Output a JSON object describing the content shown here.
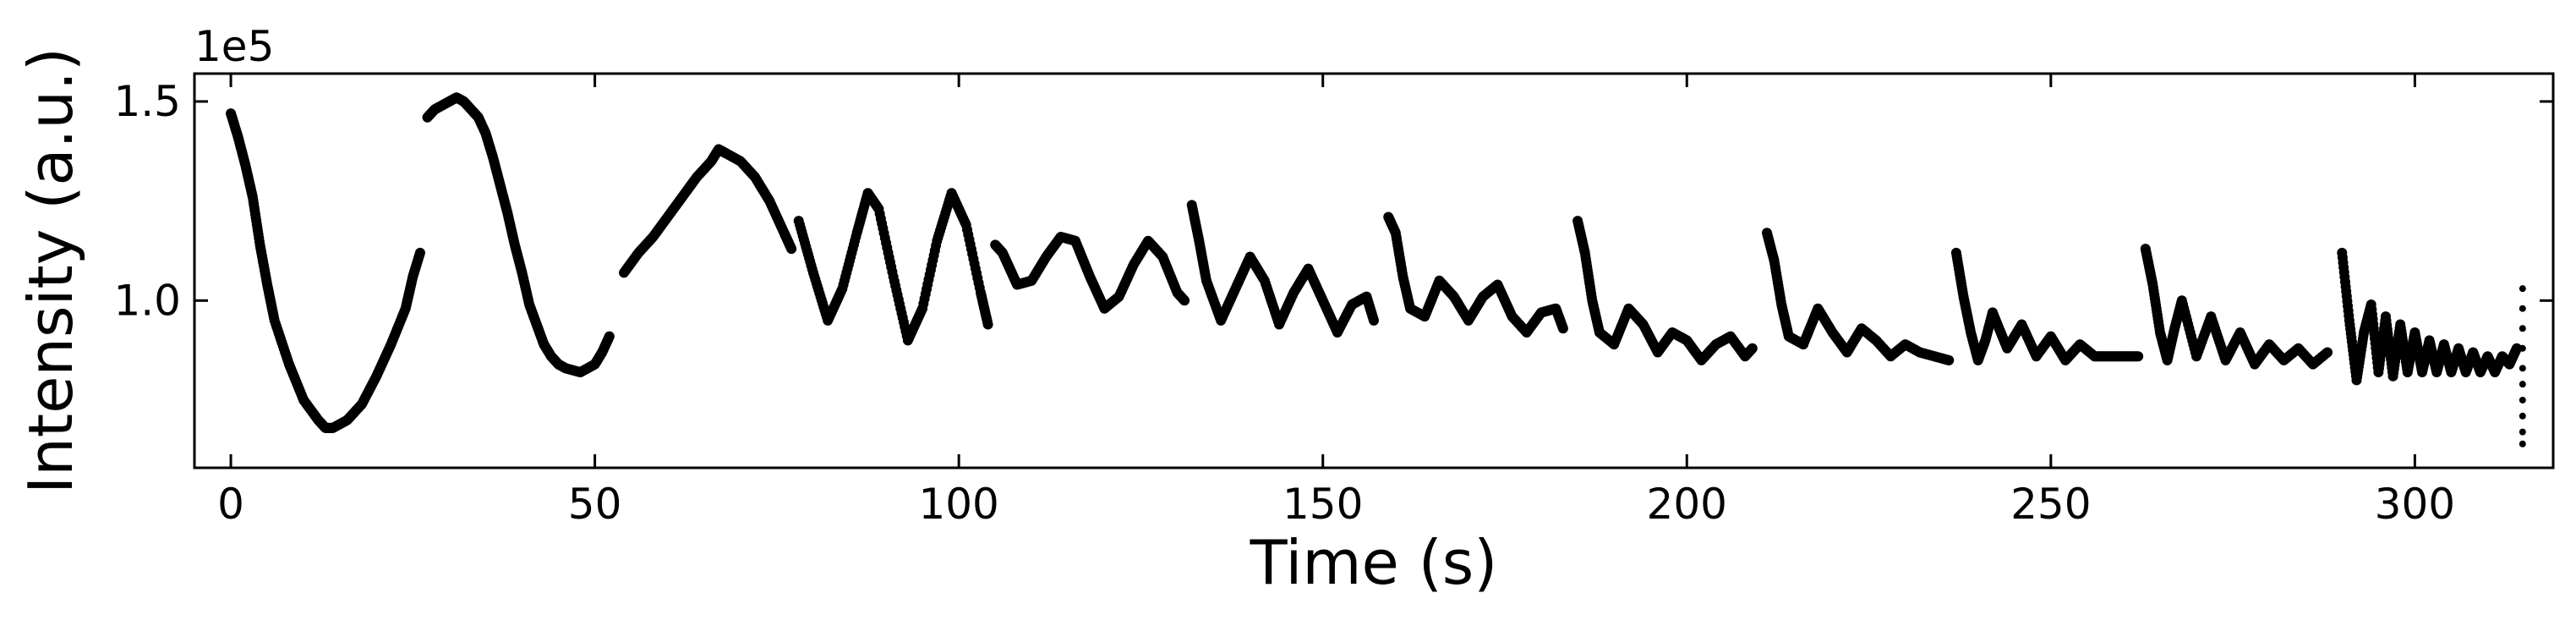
{
  "chart_data": {
    "type": "scatter",
    "title": "",
    "xlabel": "Time (s)",
    "ylabel": "Intensity (a.u.)",
    "y_multiplier_label": "1e5",
    "y_multiplier": 100000,
    "xlim": [
      -5,
      319
    ],
    "ylim": [
      58000,
      157000
    ],
    "xticks": [
      0,
      50,
      100,
      150,
      200,
      250,
      300
    ],
    "yticks": [
      100000,
      150000
    ],
    "ytick_labels": [
      "1.0",
      "1.5"
    ],
    "grid": false,
    "legend": "none",
    "marker_color": "#000000",
    "segments": [
      {
        "x": [
          0,
          1,
          2,
          3,
          4,
          5,
          6,
          8,
          10,
          12,
          13,
          14,
          16,
          18,
          20,
          22,
          24,
          25,
          26
        ],
        "y": [
          147000,
          141000,
          134000,
          126000,
          114000,
          104000,
          95000,
          84000,
          75000,
          70000,
          68000,
          68000,
          70000,
          74000,
          81000,
          89000,
          98000,
          106000,
          112000
        ]
      },
      {
        "x": [
          27,
          28,
          29,
          30,
          31,
          32,
          33,
          34,
          35,
          36,
          37,
          38,
          39,
          40,
          41,
          42,
          43,
          44,
          45,
          46,
          48,
          50,
          51,
          52
        ],
        "y": [
          146000,
          148000,
          149000,
          150000,
          151000,
          150000,
          148000,
          146000,
          142000,
          136000,
          129000,
          122000,
          114000,
          107000,
          99000,
          94000,
          89000,
          86000,
          84000,
          83000,
          82000,
          84000,
          87000,
          91000
        ]
      },
      {
        "x": [
          54,
          56,
          58,
          60,
          62,
          64,
          66,
          67,
          68,
          70,
          72,
          74,
          76,
          77
        ],
        "y": [
          107000,
          112000,
          116000,
          121000,
          126000,
          131000,
          135000,
          138000,
          137000,
          135000,
          131000,
          125000,
          117000,
          113000
        ]
      },
      {
        "x": [
          78,
          80,
          82,
          84,
          86,
          87.5,
          89,
          91,
          93,
          95,
          97,
          99,
          101,
          103,
          104
        ],
        "y": [
          120000,
          107000,
          95000,
          103000,
          117000,
          127000,
          123000,
          106000,
          90000,
          98000,
          115000,
          127000,
          119000,
          102000,
          94000
        ]
      },
      {
        "x": [
          105,
          106,
          107,
          108,
          110,
          112,
          114,
          116,
          118,
          120,
          122,
          124,
          126,
          128,
          130,
          131
        ],
        "y": [
          114000,
          112000,
          108000,
          104000,
          105000,
          111000,
          116000,
          115000,
          106000,
          98000,
          101000,
          109000,
          115000,
          111000,
          102000,
          100000
        ]
      },
      {
        "x": [
          132,
          133,
          134,
          136,
          138,
          140,
          142,
          144,
          146,
          148,
          150,
          152,
          154,
          156,
          157
        ],
        "y": [
          124000,
          115000,
          105000,
          95000,
          103000,
          111000,
          105000,
          94000,
          102000,
          108000,
          100000,
          92000,
          99000,
          101000,
          95000
        ]
      },
      {
        "x": [
          159,
          160,
          161,
          162,
          164,
          166,
          168,
          170,
          172,
          174,
          176,
          178,
          180,
          182,
          183
        ],
        "y": [
          121000,
          117000,
          106000,
          98000,
          96000,
          105000,
          101000,
          95000,
          101000,
          104000,
          96000,
          92000,
          97000,
          98000,
          93000
        ]
      },
      {
        "x": [
          185,
          186,
          187,
          188,
          190,
          192,
          194,
          196,
          198,
          200,
          202,
          204,
          206,
          208,
          209
        ],
        "y": [
          120000,
          112000,
          100000,
          92000,
          89000,
          98000,
          94000,
          87000,
          92000,
          90000,
          85000,
          89000,
          91000,
          86000,
          88000
        ]
      },
      {
        "x": [
          211,
          212,
          213,
          214,
          216,
          218,
          220,
          222,
          224,
          226,
          228,
          230,
          232,
          234,
          236
        ],
        "y": [
          117000,
          110000,
          99000,
          91000,
          89000,
          98000,
          92000,
          87000,
          93000,
          90000,
          86000,
          89000,
          87000,
          86000,
          85000
        ]
      },
      {
        "x": [
          237,
          238,
          239,
          240,
          241,
          242,
          244,
          246,
          248,
          250,
          252,
          254,
          256,
          258,
          260,
          262
        ],
        "y": [
          112000,
          101000,
          92000,
          85000,
          90000,
          97000,
          88000,
          94000,
          86000,
          91000,
          85000,
          89000,
          86000,
          86000,
          86000,
          86000
        ]
      },
      {
        "x": [
          263,
          264,
          265,
          266,
          267,
          268,
          270,
          272,
          274,
          276,
          278,
          280,
          282,
          284,
          286,
          288
        ],
        "y": [
          113000,
          104000,
          92000,
          85000,
          93000,
          100000,
          86000,
          96000,
          85000,
          92000,
          84000,
          89000,
          85000,
          88000,
          84000,
          87000
        ]
      },
      {
        "x": [
          290,
          291,
          292,
          293,
          294,
          295,
          296,
          297,
          298,
          299,
          300,
          301,
          302,
          303,
          304,
          305,
          306,
          307,
          308,
          309,
          310,
          311,
          312,
          313,
          314
        ],
        "y": [
          112000,
          95000,
          80000,
          92000,
          99000,
          82000,
          96000,
          81000,
          94000,
          82000,
          92000,
          82000,
          90000,
          82000,
          89000,
          82000,
          88000,
          82000,
          87000,
          82000,
          86000,
          82000,
          86000,
          84000,
          88000
        ]
      },
      {
        "x": [
          314.8,
          314.8,
          314.8,
          314.8,
          314.8,
          314.8,
          314.8,
          314.8,
          314.8,
          314.8
        ],
        "y": [
          64000,
          67000,
          71000,
          75000,
          79000,
          83000,
          88000,
          93000,
          98000,
          103000
        ]
      }
    ]
  }
}
